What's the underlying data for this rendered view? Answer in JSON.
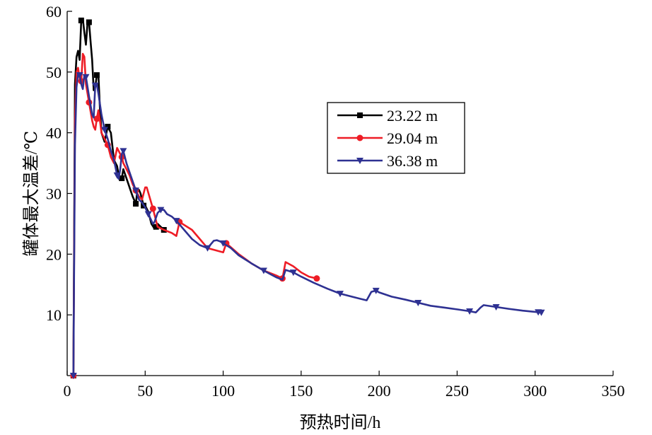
{
  "chart_data": {
    "type": "line",
    "title": "",
    "xlabel": "预热时间/h",
    "ylabel": "罐体最大温差/℃",
    "xlim": [
      0,
      350
    ],
    "ylim": [
      0,
      60
    ],
    "xticks": [
      0,
      50,
      100,
      150,
      200,
      250,
      300,
      350
    ],
    "yticks": [
      10,
      20,
      30,
      40,
      50,
      60
    ],
    "xtick_labels": [
      "0",
      "50",
      "100",
      "150",
      "200",
      "250",
      "300",
      "350"
    ],
    "ytick_labels": [
      "10",
      "20",
      "30",
      "40",
      "50",
      "60"
    ],
    "grid": false,
    "legend_position": "upper-right",
    "series": [
      {
        "name": "23.22 m",
        "color": "#000000",
        "marker": "square",
        "x": [
          4,
          5,
          6,
          7,
          8,
          9,
          10,
          11,
          12,
          13,
          14,
          15,
          16,
          17,
          18,
          19,
          20,
          21,
          22,
          24,
          26,
          28,
          30,
          32,
          33,
          35,
          36,
          38,
          40,
          42,
          44,
          45,
          46,
          47,
          48,
          49,
          50,
          52,
          54,
          56,
          57,
          58,
          60,
          62
        ],
        "y": [
          0,
          48,
          52.5,
          53.5,
          52,
          58.5,
          58.8,
          56.5,
          54.5,
          58,
          58.2,
          55,
          52,
          47,
          47.5,
          49.5,
          49.7,
          44,
          40,
          38.5,
          41,
          40,
          35.5,
          34.5,
          33,
          32.5,
          34,
          32.5,
          31,
          29.5,
          28.3,
          30.5,
          30.6,
          30,
          29,
          28,
          28,
          27,
          25,
          24.2,
          24.5,
          25,
          24.5,
          24
        ]
      },
      {
        "name": "29.04 m",
        "color": "#ee1c25",
        "marker": "circle",
        "x": [
          4,
          5,
          6,
          7,
          8,
          9,
          10,
          11,
          12,
          13,
          14,
          15,
          16,
          17,
          18,
          19,
          20,
          21,
          22,
          24,
          26,
          28,
          30,
          32,
          33,
          35,
          36,
          38,
          40,
          42,
          44,
          46,
          48,
          50,
          51,
          55,
          58,
          62,
          67,
          70,
          72,
          80,
          85,
          90,
          100,
          102,
          110,
          118,
          126,
          134,
          138,
          140,
          145,
          150,
          155,
          160
        ],
        "y": [
          0,
          42,
          50,
          50.7,
          49,
          48.5,
          53,
          52.5,
          48,
          46.5,
          45,
          43.5,
          42,
          41,
          40.5,
          42.3,
          43.7,
          42,
          40,
          39,
          38,
          36,
          35,
          37.5,
          37,
          36,
          35,
          34,
          33,
          31.5,
          30.5,
          29.5,
          29,
          31,
          31,
          27.5,
          24.5,
          24,
          23.5,
          23,
          25.3,
          24,
          22.5,
          21,
          20.3,
          21.8,
          20,
          18.5,
          17.3,
          16.5,
          16,
          18.7,
          18,
          17,
          16.3,
          16
        ]
      },
      {
        "name": "36.38 m",
        "color": "#2e3192",
        "marker": "triangle-down",
        "x": [
          4,
          5,
          6,
          7,
          8,
          9,
          10,
          11,
          12,
          14,
          16,
          17,
          18,
          19,
          20,
          22,
          24,
          26,
          28,
          30,
          32,
          33,
          34,
          35,
          36,
          38,
          40,
          42,
          44,
          46,
          48,
          50,
          52,
          55,
          56,
          58,
          60,
          62,
          64,
          67,
          70,
          75,
          80,
          85,
          90,
          94,
          96,
          98,
          100,
          105,
          110,
          118,
          126,
          134,
          138,
          140,
          145,
          150,
          158,
          167,
          175,
          184,
          192,
          195,
          198,
          200,
          208,
          217,
          225,
          233,
          242,
          250,
          258,
          262,
          265,
          267,
          275,
          283,
          292,
          300,
          302,
          304
        ],
        "y": [
          0,
          38,
          47.5,
          49.8,
          49.5,
          48,
          47.2,
          49.5,
          49.2,
          46,
          43,
          42.5,
          47.8,
          48,
          46.5,
          43,
          40.5,
          39,
          37,
          35.5,
          33,
          32.4,
          34,
          36.5,
          37,
          35,
          33.5,
          32,
          30.5,
          29,
          28.5,
          27.7,
          26.6,
          25,
          25.3,
          26.8,
          27.3,
          27.3,
          26.6,
          26.2,
          25.5,
          24,
          22.5,
          21.5,
          21,
          22.2,
          22.3,
          22.1,
          21.8,
          21,
          19.8,
          18.5,
          17.3,
          16.2,
          15.8,
          17.4,
          17,
          16.3,
          15.3,
          14.3,
          13.5,
          12.9,
          12.4,
          13.8,
          14,
          13.7,
          13,
          12.5,
          12,
          11.5,
          11.2,
          10.9,
          10.6,
          10.4,
          11.2,
          11.6,
          11.3,
          11,
          10.7,
          10.5,
          10.45,
          10.4
        ]
      }
    ]
  }
}
